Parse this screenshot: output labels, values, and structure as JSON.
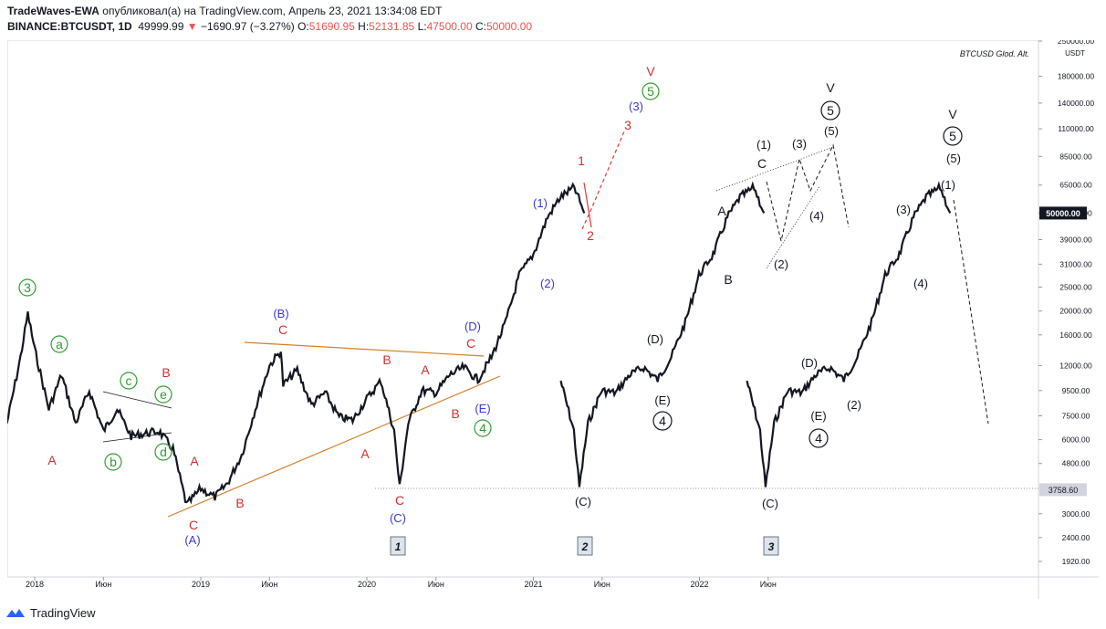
{
  "header": {
    "author": "TradeWaves-EWA",
    "published": "опубликовал(а) на TradingView.com, Апрель 23, 2021 13:34:08 EDT",
    "symbol": "BINANCE:BTCUSDT, 1D",
    "last": "49999.99",
    "arrow": "▼",
    "change": "−1690.97 (−3.27%)",
    "o_label": "O:",
    "o": "51690.95",
    "h_label": "H:",
    "h": "52131.85",
    "l_label": "L:",
    "l": "47500.00",
    "c_label": "C:",
    "c": "50000.00"
  },
  "footer": {
    "brand": "TradingView"
  },
  "colors": {
    "red": "#d32f2f",
    "blue": "#3a3ad6",
    "green": "#2f9e2f",
    "black": "#131722",
    "orange": "#d4802a"
  },
  "chart_data": {
    "type": "line",
    "title": "BTCUSD Glod. Alt.",
    "price_scale": "log",
    "currency": "USDT",
    "y_ticks": [
      "250000.00",
      "180000.00",
      "140000.00",
      "110000.00",
      "85000.00",
      "65000.00",
      "50000.00",
      "39000.00",
      "31000.00",
      "25000.00",
      "20000.00",
      "16000.00",
      "12000.00",
      "9500.00",
      "7500.00",
      "6000.00",
      "4800.00",
      "3758.60",
      "3000.00",
      "2400.00",
      "1920.00"
    ],
    "y_tick_values": [
      250000,
      180000,
      140000,
      110000,
      85000,
      65000,
      50000,
      39000,
      31000,
      25000,
      20000,
      16000,
      12000,
      9500,
      7500,
      6000,
      4800,
      3758.6,
      3000,
      2400,
      1920
    ],
    "last_price_label": "50000.00",
    "level_label": "3758.60",
    "x_ticks": [
      "2018",
      "Июн",
      "2019",
      "Июн",
      "2020",
      "Июн",
      "2021",
      "Июн",
      "2022",
      "Июн"
    ],
    "x_tick_dates": [
      "2018-01",
      "2018-06",
      "2019-01",
      "2019-06",
      "2020-01",
      "2020-06",
      "2021-01",
      "2021-06",
      "2022-01",
      "2022-06"
    ],
    "series": [
      {
        "price_path": [
          [
            "2017-11",
            7000
          ],
          [
            "2017-12",
            13000
          ],
          [
            "2017-12-17",
            19500
          ],
          [
            "2018-01",
            14000
          ],
          [
            "2018-02",
            8000
          ],
          [
            "2018-03",
            11000
          ],
          [
            "2018-04",
            7000
          ],
          [
            "2018-05",
            9500
          ],
          [
            "2018-06",
            6500
          ],
          [
            "2018-07",
            8000
          ],
          [
            "2018-08",
            6200
          ],
          [
            "2018-10",
            6500
          ],
          [
            "2018-11",
            5500
          ],
          [
            "2018-12",
            3250
          ],
          [
            "2019-01",
            3800
          ],
          [
            "2019-02",
            3500
          ],
          [
            "2019-03",
            4000
          ],
          [
            "2019-04",
            5200
          ],
          [
            "2019-05",
            8000
          ],
          [
            "2019-06",
            12000
          ],
          [
            "2019-06-26",
            13800
          ],
          [
            "2019-07",
            10000
          ],
          [
            "2019-08",
            11500
          ],
          [
            "2019-09",
            8300
          ],
          [
            "2019-10",
            9300
          ],
          [
            "2019-11",
            7400
          ],
          [
            "2019-12",
            7200
          ],
          [
            "2020-01",
            8800
          ],
          [
            "2020-02",
            10400
          ],
          [
            "2020-03",
            6500
          ],
          [
            "2020-03-13",
            3850
          ],
          [
            "2020-04",
            7000
          ],
          [
            "2020-05",
            9500
          ],
          [
            "2020-06",
            9300
          ],
          [
            "2020-07",
            11000
          ],
          [
            "2020-08",
            11800
          ],
          [
            "2020-09",
            10500
          ],
          [
            "2020-10",
            13000
          ],
          [
            "2020-11",
            18000
          ],
          [
            "2020-12",
            28000
          ],
          [
            "2021-01",
            34000
          ],
          [
            "2021-02",
            48000
          ],
          [
            "2021-03",
            58000
          ],
          [
            "2021-04",
            63500
          ],
          [
            "2021-04-23",
            50000
          ]
        ]
      }
    ],
    "labels": [
      {
        "t": "3",
        "color": "green",
        "circle": true
      },
      {
        "t": "a",
        "color": "green",
        "circle": true
      },
      {
        "t": "b",
        "color": "green",
        "circle": true
      },
      {
        "t": "c",
        "color": "green",
        "circle": true
      },
      {
        "t": "d",
        "color": "green",
        "circle": true
      },
      {
        "t": "e",
        "color": "green",
        "circle": true
      },
      {
        "t": "4",
        "color": "green",
        "circle": true
      },
      {
        "t": "5",
        "color": "green",
        "circle": true
      },
      {
        "t": "A",
        "color": "red"
      },
      {
        "t": "B",
        "color": "red"
      },
      {
        "t": "C",
        "color": "red"
      },
      {
        "t": "1",
        "color": "red"
      },
      {
        "t": "2",
        "color": "red"
      },
      {
        "t": "3",
        "color": "red"
      },
      {
        "t": "V",
        "color": "red"
      },
      {
        "t": "(A)",
        "color": "blue"
      },
      {
        "t": "(B)",
        "color": "blue"
      },
      {
        "t": "(C)",
        "color": "blue"
      },
      {
        "t": "(D)",
        "color": "blue"
      },
      {
        "t": "(E)",
        "color": "blue"
      },
      {
        "t": "(1)",
        "color": "blue"
      },
      {
        "t": "(2)",
        "color": "blue"
      },
      {
        "t": "(3)",
        "color": "blue"
      },
      {
        "t": "(1)",
        "color": "black"
      },
      {
        "t": "(2)",
        "color": "black"
      },
      {
        "t": "(3)",
        "color": "black"
      },
      {
        "t": "(4)",
        "color": "black"
      },
      {
        "t": "(5)",
        "color": "black"
      },
      {
        "t": "(C)",
        "color": "black"
      },
      {
        "t": "(D)",
        "color": "black"
      },
      {
        "t": "(E)",
        "color": "black"
      },
      {
        "t": "A",
        "color": "black"
      },
      {
        "t": "B",
        "color": "black"
      },
      {
        "t": "C",
        "color": "black"
      },
      {
        "t": "V",
        "color": "black"
      },
      {
        "t": "4",
        "color": "black",
        "circle": true
      },
      {
        "t": "5",
        "color": "black",
        "circle": true
      }
    ],
    "scenario_boxes": [
      "1",
      "2",
      "3"
    ]
  }
}
